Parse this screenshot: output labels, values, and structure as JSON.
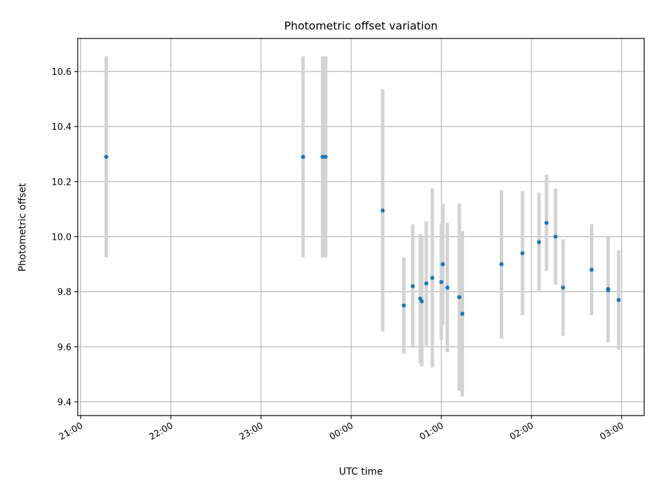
{
  "chart_data": {
    "type": "scatter",
    "title": "Photometric offset variation",
    "xlabel": "UTC time",
    "ylabel": "Photometric offset",
    "x_axis_kind": "time",
    "xlim": [
      "2023-01-01T20:58",
      "2023-01-02T03:15"
    ],
    "ylim": [
      9.35,
      10.72
    ],
    "x_ticks": [
      {
        "t": "2023-01-01T21:00",
        "label": "21:00"
      },
      {
        "t": "2023-01-01T22:00",
        "label": "22:00"
      },
      {
        "t": "2023-01-01T23:00",
        "label": "23:00"
      },
      {
        "t": "2023-01-02T00:00",
        "label": "00:00"
      },
      {
        "t": "2023-01-02T01:00",
        "label": "01:00"
      },
      {
        "t": "2023-01-02T02:00",
        "label": "02:00"
      },
      {
        "t": "2023-01-02T03:00",
        "label": "03:00"
      }
    ],
    "y_ticks": [
      {
        "v": 9.4,
        "label": "9.4"
      },
      {
        "v": 9.6,
        "label": "9.6"
      },
      {
        "v": 9.8,
        "label": "9.8"
      },
      {
        "v": 10.0,
        "label": "10.0"
      },
      {
        "v": 10.2,
        "label": "10.2"
      },
      {
        "v": 10.4,
        "label": "10.4"
      },
      {
        "v": 10.6,
        "label": "10.6"
      }
    ],
    "grid": true,
    "marker_color": "#1f77b4",
    "errorbar_color": "#d3d3d3",
    "points": [
      {
        "t": "2023-01-01T21:17",
        "y": 10.29,
        "err": 0.365
      },
      {
        "t": "2023-01-01T23:28",
        "y": 10.29,
        "err": 0.365
      },
      {
        "t": "2023-01-01T23:41",
        "y": 10.29,
        "err": 0.365
      },
      {
        "t": "2023-01-01T23:43",
        "y": 10.29,
        "err": 0.365
      },
      {
        "t": "2023-01-02T00:21",
        "y": 10.095,
        "err": 0.44
      },
      {
        "t": "2023-01-02T00:35",
        "y": 9.75,
        "err": 0.175
      },
      {
        "t": "2023-01-02T00:41",
        "y": 9.82,
        "err": 0.225
      },
      {
        "t": "2023-01-02T00:46",
        "y": 9.775,
        "err": 0.235
      },
      {
        "t": "2023-01-02T00:47",
        "y": 9.765,
        "err": 0.235
      },
      {
        "t": "2023-01-02T00:50",
        "y": 9.83,
        "err": 0.225
      },
      {
        "t": "2023-01-02T00:54",
        "y": 9.85,
        "err": 0.325
      },
      {
        "t": "2023-01-02T01:00",
        "y": 9.835,
        "err": 0.21
      },
      {
        "t": "2023-01-02T01:01",
        "y": 9.9,
        "err": 0.22
      },
      {
        "t": "2023-01-02T01:04",
        "y": 9.815,
        "err": 0.235
      },
      {
        "t": "2023-01-02T01:12",
        "y": 9.78,
        "err": 0.34
      },
      {
        "t": "2023-01-02T01:14",
        "y": 9.72,
        "err": 0.3
      },
      {
        "t": "2023-01-02T01:40",
        "y": 9.9,
        "err": 0.27
      },
      {
        "t": "2023-01-02T01:54",
        "y": 9.94,
        "err": 0.225
      },
      {
        "t": "2023-01-02T02:05",
        "y": 9.98,
        "err": 0.18
      },
      {
        "t": "2023-01-02T02:10",
        "y": 10.05,
        "err": 0.175
      },
      {
        "t": "2023-01-02T02:16",
        "y": 10.0,
        "err": 0.175
      },
      {
        "t": "2023-01-02T02:21",
        "y": 9.815,
        "err": 0.175
      },
      {
        "t": "2023-01-02T02:40",
        "y": 9.88,
        "err": 0.165
      },
      {
        "t": "2023-01-02T02:51",
        "y": 9.81,
        "err": 0.19
      },
      {
        "t": "2023-01-02T02:51",
        "y": 9.805,
        "err": 0.19
      },
      {
        "t": "2023-01-02T02:58",
        "y": 9.77,
        "err": 0.18
      }
    ]
  }
}
